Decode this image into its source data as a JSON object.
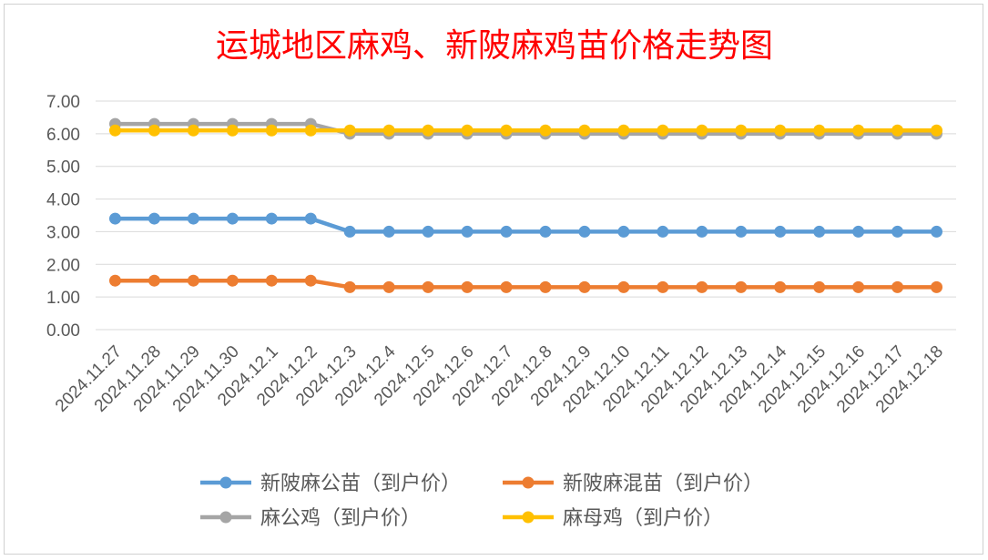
{
  "chart_data": {
    "type": "line",
    "title": "运城地区麻鸡、新陂麻鸡苗价格走势图",
    "xlabel": "",
    "ylabel": "",
    "ylim": [
      0,
      7
    ],
    "y_ticks": [
      "0.00",
      "1.00",
      "2.00",
      "3.00",
      "4.00",
      "5.00",
      "6.00",
      "7.00"
    ],
    "grid": true,
    "legend_position": "bottom",
    "categories": [
      "2024.11.27",
      "2024.11.28",
      "2024.11.29",
      "2024.11.30",
      "2024.12.1",
      "2024.12.2",
      "2024.12.3",
      "2024.12.4",
      "2024.12.5",
      "2024.12.6",
      "2024.12.7",
      "2024.12.8",
      "2024.12.9",
      "2024.12.10",
      "2024.12.11",
      "2024.12.12",
      "2024.12.13",
      "2024.12.14",
      "2024.12.15",
      "2024.12.16",
      "2024.12.17",
      "2024.12.18"
    ],
    "series": [
      {
        "name": "新陂麻公苗（到户价）",
        "color": "#5B9BD5",
        "values": [
          3.4,
          3.4,
          3.4,
          3.4,
          3.4,
          3.4,
          3.0,
          3.0,
          3.0,
          3.0,
          3.0,
          3.0,
          3.0,
          3.0,
          3.0,
          3.0,
          3.0,
          3.0,
          3.0,
          3.0,
          3.0,
          3.0
        ]
      },
      {
        "name": "新陂麻混苗（到户价）",
        "color": "#ED7D31",
        "values": [
          1.5,
          1.5,
          1.5,
          1.5,
          1.5,
          1.5,
          1.3,
          1.3,
          1.3,
          1.3,
          1.3,
          1.3,
          1.3,
          1.3,
          1.3,
          1.3,
          1.3,
          1.3,
          1.3,
          1.3,
          1.3,
          1.3
        ]
      },
      {
        "name": "麻公鸡（到户价）",
        "color": "#A5A5A5",
        "values": [
          6.3,
          6.3,
          6.3,
          6.3,
          6.3,
          6.3,
          6.0,
          6.0,
          6.0,
          6.0,
          6.0,
          6.0,
          6.0,
          6.0,
          6.0,
          6.0,
          6.0,
          6.0,
          6.0,
          6.0,
          6.0,
          6.0
        ]
      },
      {
        "name": "麻母鸡（到户价）",
        "color": "#FFC000",
        "values": [
          6.1,
          6.1,
          6.1,
          6.1,
          6.1,
          6.1,
          6.1,
          6.1,
          6.1,
          6.1,
          6.1,
          6.1,
          6.1,
          6.1,
          6.1,
          6.1,
          6.1,
          6.1,
          6.1,
          6.1,
          6.1,
          6.1
        ]
      }
    ],
    "title_color": "#FF0000"
  }
}
